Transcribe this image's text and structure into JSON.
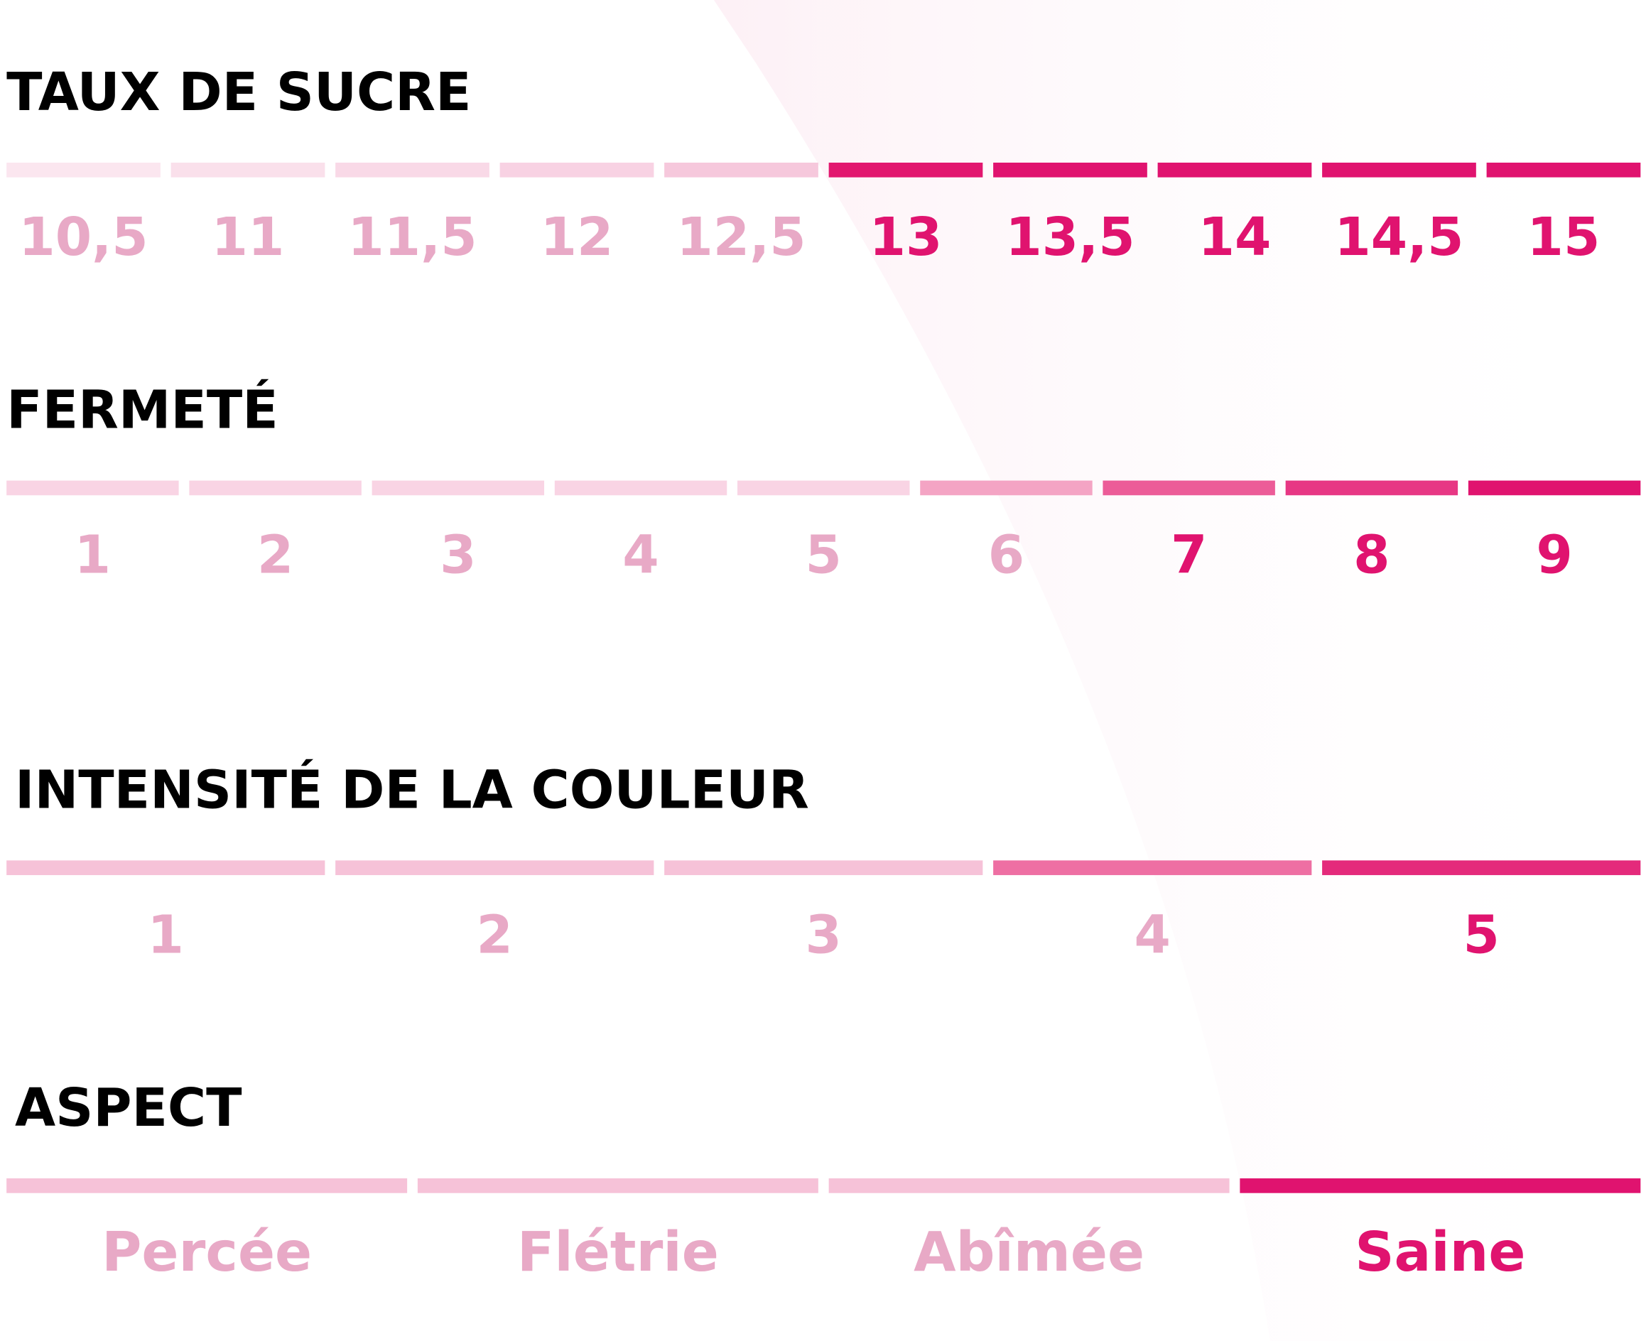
{
  "sections": [
    {
      "title": "TAUX DE SUCRE",
      "items": [
        {
          "label": "10,5",
          "bar_color": "#fbe6ef",
          "label_color": "#e8a9c6"
        },
        {
          "label": "11",
          "bar_color": "#fae0eb",
          "label_color": "#e8a9c6"
        },
        {
          "label": "11,5",
          "bar_color": "#f9d9e7",
          "label_color": "#e8a9c6"
        },
        {
          "label": "12",
          "bar_color": "#f8d2e3",
          "label_color": "#e8a9c6"
        },
        {
          "label": "12,5",
          "bar_color": "#f6c8dc",
          "label_color": "#e8a9c6"
        },
        {
          "label": "13",
          "bar_color": "#e2176f",
          "label_color": "#e0136f"
        },
        {
          "label": "13,5",
          "bar_color": "#e0136f",
          "label_color": "#e0136f"
        },
        {
          "label": "14",
          "bar_color": "#e0136f",
          "label_color": "#e0136f"
        },
        {
          "label": "14,5",
          "bar_color": "#e0136f",
          "label_color": "#e0136f"
        },
        {
          "label": "15",
          "bar_color": "#e0136f",
          "label_color": "#e0136f"
        }
      ]
    },
    {
      "title": "FERMETÉ",
      "items": [
        {
          "label": "1",
          "bar_color": "#f9d4e4",
          "label_color": "#e8a9c6"
        },
        {
          "label": "2",
          "bar_color": "#f9d4e4",
          "label_color": "#e8a9c6"
        },
        {
          "label": "3",
          "bar_color": "#f9d4e4",
          "label_color": "#e8a9c6"
        },
        {
          "label": "4",
          "bar_color": "#f9d4e4",
          "label_color": "#e8a9c6"
        },
        {
          "label": "5",
          "bar_color": "#f9d4e4",
          "label_color": "#e8a9c6"
        },
        {
          "label": "6",
          "bar_color": "#f4a4c4",
          "label_color": "#e8a9c6"
        },
        {
          "label": "7",
          "bar_color": "#ec5c98",
          "label_color": "#e0136f"
        },
        {
          "label": "8",
          "bar_color": "#e73784",
          "label_color": "#e0136f"
        },
        {
          "label": "9",
          "bar_color": "#e0136f",
          "label_color": "#e0136f"
        }
      ]
    },
    {
      "title": "INTENSITÉ DE LA COULEUR",
      "items": [
        {
          "label": "1",
          "bar_color": "#f6c2d8",
          "label_color": "#e8a9c6"
        },
        {
          "label": "2",
          "bar_color": "#f6c2d8",
          "label_color": "#e8a9c6"
        },
        {
          "label": "3",
          "bar_color": "#f6c2d8",
          "label_color": "#e8a9c6"
        },
        {
          "label": "4",
          "bar_color": "#ee6fa3",
          "label_color": "#e8a9c6"
        },
        {
          "label": "5",
          "bar_color": "#e42a7b",
          "label_color": "#e0136f"
        }
      ]
    },
    {
      "title": "ASPECT",
      "items": [
        {
          "label": "Percée",
          "bar_color": "#f6c2d8",
          "label_color": "#e8a9c6"
        },
        {
          "label": "Flétrie",
          "bar_color": "#f6c2d8",
          "label_color": "#e8a9c6"
        },
        {
          "label": "Abîmée",
          "bar_color": "#f6c2d8",
          "label_color": "#e8a9c6"
        },
        {
          "label": "Saine",
          "bar_color": "#e0136f",
          "label_color": "#e0136f"
        }
      ]
    }
  ]
}
